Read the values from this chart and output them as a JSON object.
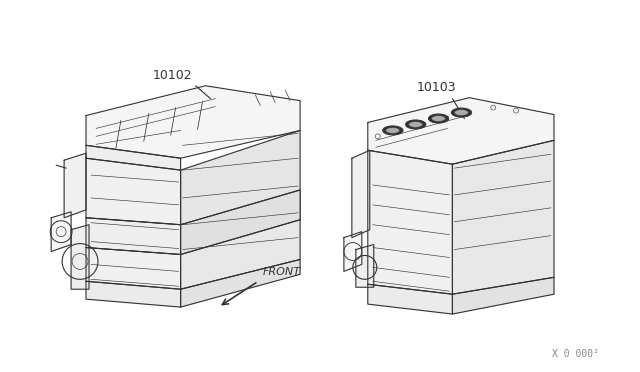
{
  "background_color": "#ffffff",
  "label_10102": "10102",
  "label_10103": "10103",
  "front_label": "FRONT",
  "part_number": "X 0 000²",
  "line_color": "#333333",
  "line_width": 0.8,
  "fig_width": 6.4,
  "fig_height": 3.72,
  "dpi": 100
}
